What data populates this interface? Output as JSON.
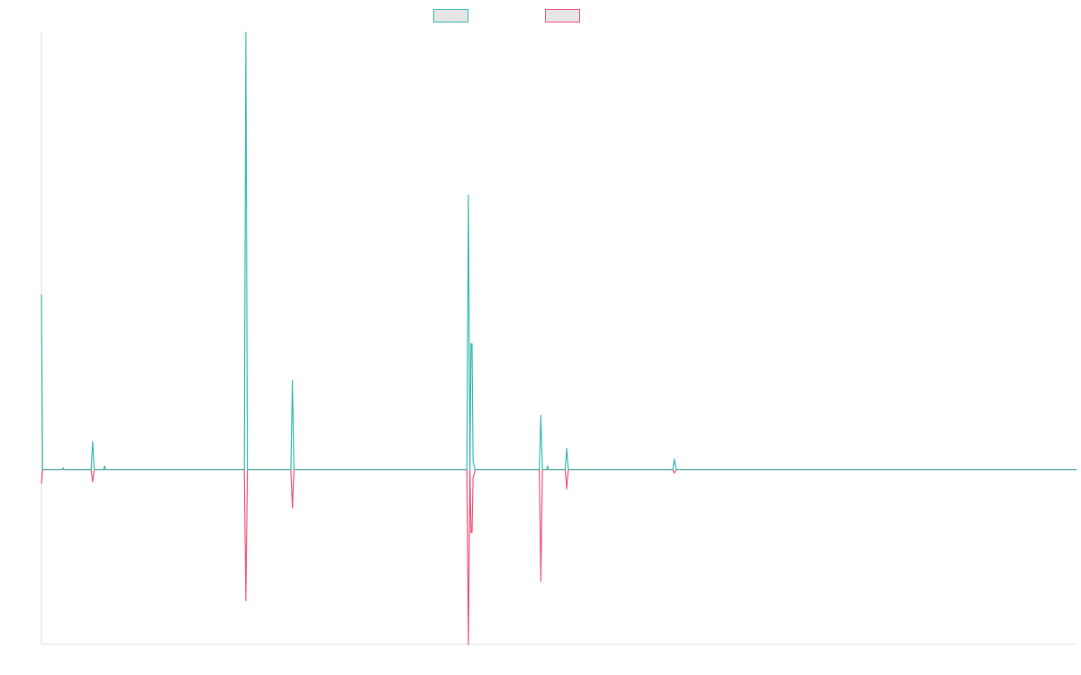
{
  "chart_data": {
    "type": "line",
    "title": "",
    "xlabel": "",
    "ylabel": "",
    "grid": false,
    "legend": "top-center",
    "xlim": [
      0,
      1000
    ],
    "ylim": [
      -1.0,
      2.5
    ],
    "series": [
      {
        "color": "#3bbdb5",
        "points": [
          [
            0,
            1.0
          ],
          [
            1.2,
            0.0
          ],
          [
            20,
            0
          ],
          [
            21,
            0.01
          ],
          [
            22,
            0
          ],
          [
            48,
            0
          ],
          [
            49.5,
            0.16
          ],
          [
            51,
            0
          ],
          [
            60,
            0
          ],
          [
            61,
            0.02
          ],
          [
            62,
            0
          ],
          [
            196,
            0
          ],
          [
            197.5,
            2.5
          ],
          [
            199,
            0
          ],
          [
            241,
            0
          ],
          [
            242.5,
            0.51
          ],
          [
            244,
            0
          ],
          [
            411,
            0
          ],
          [
            412.5,
            1.57
          ],
          [
            414,
            0
          ],
          [
            415,
            0.72
          ],
          [
            416,
            0.72
          ],
          [
            417,
            0.05
          ],
          [
            419,
            0
          ],
          [
            481,
            0
          ],
          [
            482.5,
            0.31
          ],
          [
            484,
            0
          ],
          [
            488,
            0
          ],
          [
            489,
            0.02
          ],
          [
            490,
            0
          ],
          [
            506,
            0
          ],
          [
            507.5,
            0.12
          ],
          [
            509,
            0
          ],
          [
            610,
            0
          ],
          [
            611.5,
            0.06
          ],
          [
            613,
            0
          ],
          [
            1000,
            0
          ]
        ]
      },
      {
        "color": "#f0587a",
        "points": [
          [
            0,
            -0.08
          ],
          [
            1.2,
            0.0
          ],
          [
            48,
            0
          ],
          [
            49.5,
            -0.07
          ],
          [
            51,
            0
          ],
          [
            196,
            0
          ],
          [
            197.5,
            -0.75
          ],
          [
            199,
            0
          ],
          [
            241,
            0
          ],
          [
            242.5,
            -0.22
          ],
          [
            244,
            0
          ],
          [
            411,
            0
          ],
          [
            412.5,
            -1.0
          ],
          [
            414,
            0
          ],
          [
            415,
            -0.36
          ],
          [
            416,
            -0.36
          ],
          [
            417,
            -0.05
          ],
          [
            419,
            0
          ],
          [
            481,
            0
          ],
          [
            482.5,
            -0.64
          ],
          [
            484,
            0
          ],
          [
            506,
            0
          ],
          [
            507.5,
            -0.11
          ],
          [
            509,
            0
          ],
          [
            610,
            0
          ],
          [
            611.5,
            -0.02
          ],
          [
            613,
            0
          ],
          [
            1000,
            0
          ]
        ]
      }
    ]
  }
}
